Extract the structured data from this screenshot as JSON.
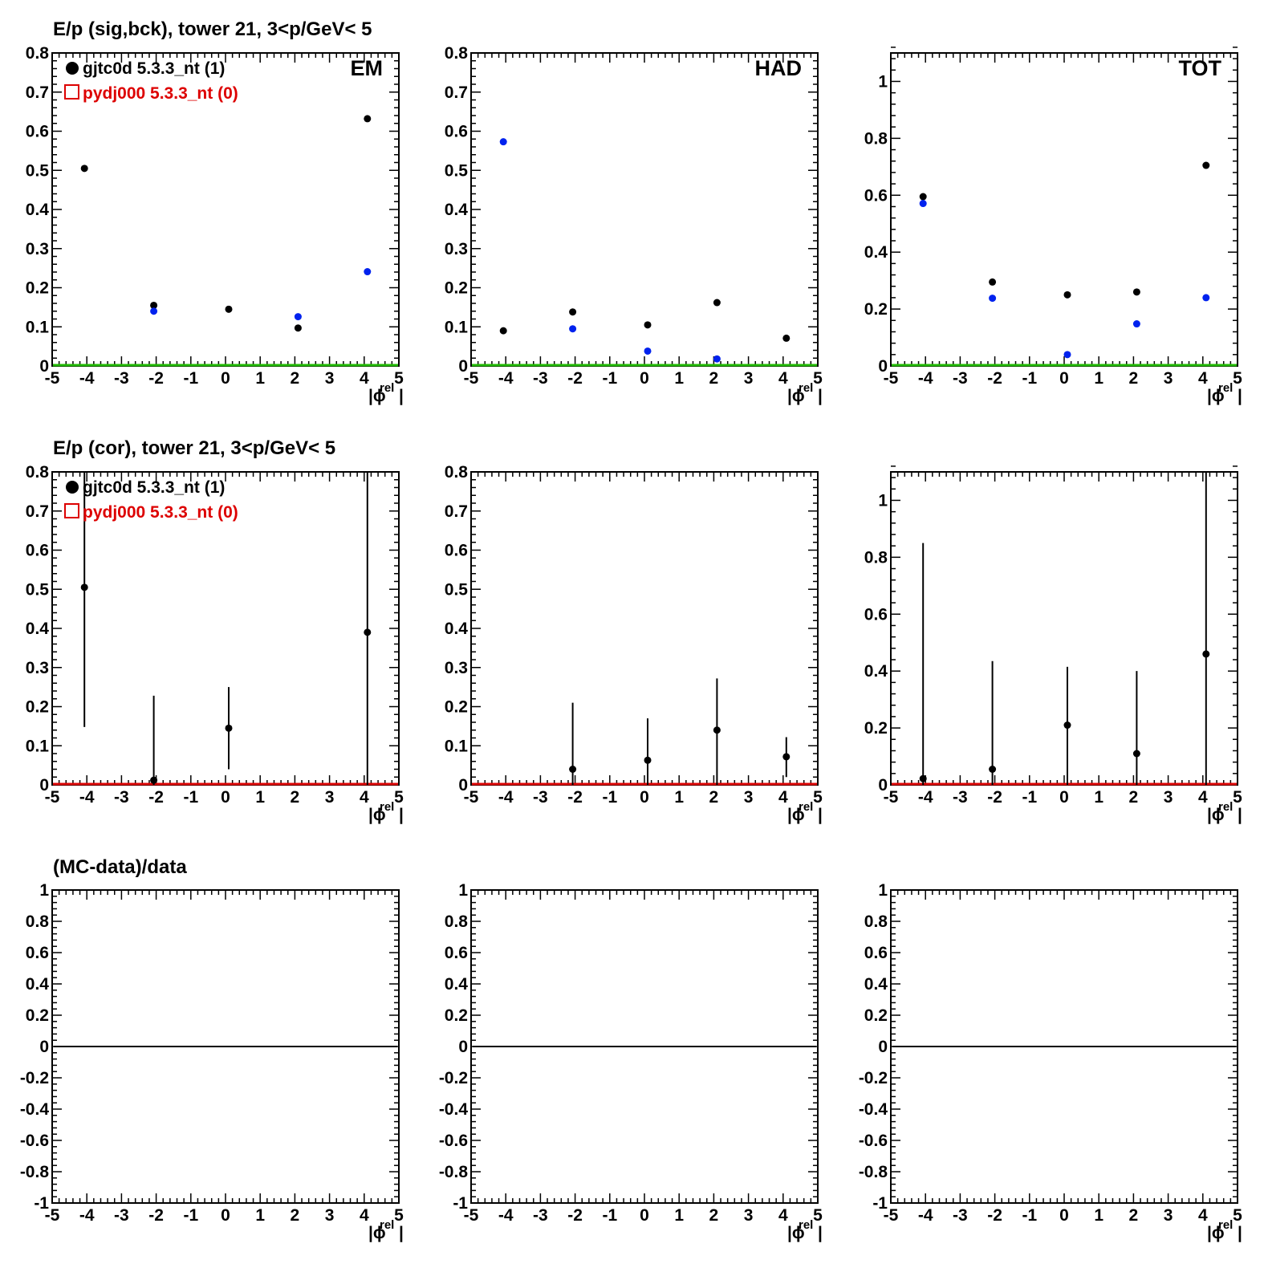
{
  "row_titles": [
    "E/p (sig,bck), tower 21,  3<p/GeV< 5",
    "E/p (cor), tower 21,  3<p/GeV< 5",
    "(MC-data)/data"
  ],
  "legend": [
    {
      "marker": "filled-circle",
      "color": "#000000",
      "text": "gjtc0d 5.3.3_nt (1)"
    },
    {
      "marker": "open-square",
      "color": "#dd0000",
      "text": "pydj000 5.3.3_nt (0)"
    }
  ],
  "x_axis": {
    "label_main": "|ϕ",
    "label_sup": "rel",
    "label_end": "|",
    "range": [
      -5,
      5
    ],
    "ticks": [
      "-5",
      "-4",
      "-3",
      "-2",
      "-1",
      "0",
      "1",
      "2",
      "3",
      "4",
      "5"
    ]
  },
  "colors": {
    "data": "#000000",
    "background": "#0022ee",
    "baseline_row1": "#22bb00",
    "baseline_row2": "#dd0000",
    "mc": "#dd0000"
  },
  "chart_data": [
    {
      "type": "scatter",
      "panel": "EM",
      "row": 1,
      "col": 1,
      "label": "EM",
      "ylim": [
        0,
        0.8
      ],
      "yticks": [
        "0",
        "0.1",
        "0.2",
        "0.3",
        "0.4",
        "0.5",
        "0.6",
        "0.7",
        "0.8"
      ],
      "series": [
        {
          "name": "signal",
          "color": "#000000",
          "x": [
            -4,
            -2,
            0,
            2,
            4
          ],
          "y": [
            0.505,
            0.155,
            0.145,
            0.097,
            0.632
          ]
        },
        {
          "name": "background",
          "color": "#0022ee",
          "x": [
            -2,
            2,
            4
          ],
          "y": [
            0.14,
            0.126,
            0.241
          ]
        }
      ]
    },
    {
      "type": "scatter",
      "panel": "HAD",
      "row": 1,
      "col": 2,
      "label": "HAD",
      "ylim": [
        0,
        0.8
      ],
      "yticks": [
        "0",
        "0.1",
        "0.2",
        "0.3",
        "0.4",
        "0.5",
        "0.6",
        "0.7",
        "0.8"
      ],
      "series": [
        {
          "name": "signal",
          "color": "#000000",
          "x": [
            -4,
            -2,
            0,
            2,
            4
          ],
          "y": [
            0.09,
            0.138,
            0.105,
            0.162,
            0.071
          ]
        },
        {
          "name": "background",
          "color": "#0022ee",
          "x": [
            -4,
            -2,
            0,
            2
          ],
          "y": [
            0.573,
            0.095,
            0.038,
            0.018
          ]
        }
      ]
    },
    {
      "type": "scatter",
      "panel": "TOT",
      "row": 1,
      "col": 3,
      "label": "TOT",
      "ylim": [
        0,
        1.1
      ],
      "yticks": [
        "0",
        "0.2",
        "0.4",
        "0.6",
        "0.8",
        "1"
      ],
      "series": [
        {
          "name": "signal",
          "color": "#000000",
          "x": [
            -4,
            -2,
            0,
            2,
            4
          ],
          "y": [
            0.595,
            0.295,
            0.25,
            0.26,
            0.705
          ]
        },
        {
          "name": "background",
          "color": "#0022ee",
          "x": [
            -4,
            -2,
            0,
            2,
            4
          ],
          "y": [
            0.571,
            0.238,
            0.04,
            0.148,
            0.24
          ]
        }
      ]
    },
    {
      "type": "scatter",
      "panel": "EM-cor",
      "row": 2,
      "col": 1,
      "label": "",
      "ylim": [
        0,
        0.8
      ],
      "yticks": [
        "0",
        "0.1",
        "0.2",
        "0.3",
        "0.4",
        "0.5",
        "0.6",
        "0.7",
        "0.8"
      ],
      "series": [
        {
          "name": "",
          "color": "#000000",
          "x": [
            -4,
            -2,
            0,
            4
          ],
          "y": [
            0.505,
            0.012,
            0.145,
            0.39
          ],
          "yerr_low": [
            0.148,
            0.0,
            0.04,
            0.0
          ],
          "yerr_high": [
            0.8,
            0.228,
            0.25,
            0.8
          ]
        }
      ]
    },
    {
      "type": "scatter",
      "panel": "HAD-cor",
      "row": 2,
      "col": 2,
      "label": "",
      "ylim": [
        0,
        0.8
      ],
      "yticks": [
        "0",
        "0.1",
        "0.2",
        "0.3",
        "0.4",
        "0.5",
        "0.6",
        "0.7",
        "0.8"
      ],
      "series": [
        {
          "name": "",
          "color": "#000000",
          "x": [
            -2,
            0,
            2,
            4
          ],
          "y": [
            0.04,
            0.063,
            0.14,
            0.072
          ],
          "yerr_low": [
            0.0,
            0.0,
            0.0,
            0.02
          ],
          "yerr_high": [
            0.21,
            0.17,
            0.272,
            0.122
          ]
        }
      ]
    },
    {
      "type": "scatter",
      "panel": "TOT-cor",
      "row": 2,
      "col": 3,
      "label": "",
      "ylim": [
        0,
        1.1
      ],
      "yticks": [
        "0",
        "0.2",
        "0.4",
        "0.6",
        "0.8",
        "1"
      ],
      "series": [
        {
          "name": "",
          "color": "#000000",
          "x": [
            -4,
            -2,
            0,
            2,
            4
          ],
          "y": [
            0.022,
            0.055,
            0.21,
            0.11,
            0.46
          ],
          "yerr_low": [
            0.0,
            0.0,
            0.0,
            0.0,
            0.0
          ],
          "yerr_high": [
            0.85,
            0.435,
            0.415,
            0.4,
            1.1
          ]
        }
      ]
    },
    {
      "type": "line",
      "panel": "EM-ratio",
      "row": 3,
      "col": 1,
      "label": "",
      "ylim": [
        -1,
        1
      ],
      "yticks": [
        "-1",
        "-0.8",
        "-0.6",
        "-0.4",
        "-0.2",
        "0",
        "0.2",
        "0.4",
        "0.6",
        "0.8",
        "1"
      ],
      "series": [
        {
          "name": "",
          "color": "#000000",
          "x": [
            -5,
            5
          ],
          "y": [
            0,
            0
          ]
        }
      ]
    },
    {
      "type": "line",
      "panel": "HAD-ratio",
      "row": 3,
      "col": 2,
      "label": "",
      "ylim": [
        -1,
        1
      ],
      "yticks": [
        "-1",
        "-0.8",
        "-0.6",
        "-0.4",
        "-0.2",
        "0",
        "0.2",
        "0.4",
        "0.6",
        "0.8",
        "1"
      ],
      "series": [
        {
          "name": "",
          "color": "#000000",
          "x": [
            -5,
            5
          ],
          "y": [
            0,
            0
          ]
        }
      ]
    },
    {
      "type": "line",
      "panel": "TOT-ratio",
      "row": 3,
      "col": 3,
      "label": "",
      "ylim": [
        -1,
        1
      ],
      "yticks": [
        "-1",
        "-0.8",
        "-0.6",
        "-0.4",
        "-0.2",
        "0",
        "0.2",
        "0.4",
        "0.6",
        "0.8",
        "1"
      ],
      "series": [
        {
          "name": "",
          "color": "#000000",
          "x": [
            -5,
            5
          ],
          "y": [
            0,
            0
          ]
        }
      ]
    }
  ]
}
